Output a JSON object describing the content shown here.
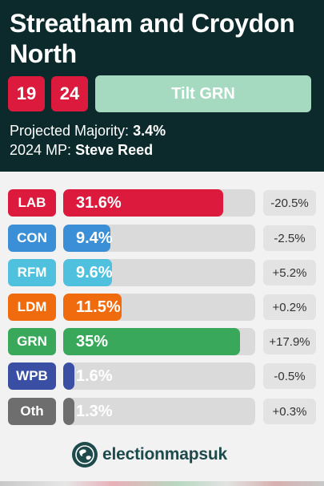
{
  "header": {
    "title": "Streatham and Croydon North",
    "badges": [
      "19",
      "24"
    ],
    "tilt_label": "Tilt GRN",
    "majority_label": "Projected Majority:",
    "majority_value": "3.4%",
    "mp_label": "2024 MP:",
    "mp_value": "Steve Reed"
  },
  "parties": [
    {
      "code": "LAB",
      "pct": "31.6%",
      "value": 31.6,
      "change": "-20.5%",
      "color": "#dc1a3d"
    },
    {
      "code": "CON",
      "pct": "9.4%",
      "value": 9.4,
      "change": "-2.5%",
      "color": "#3b8fd6"
    },
    {
      "code": "RFM",
      "pct": "9.6%",
      "value": 9.6,
      "change": "+5.2%",
      "color": "#4fc0dd"
    },
    {
      "code": "LDM",
      "pct": "11.5%",
      "value": 11.5,
      "change": "+0.2%",
      "color": "#f06a0e"
    },
    {
      "code": "GRN",
      "pct": "35%",
      "value": 35,
      "change": "+17.9%",
      "color": "#3aa85a"
    },
    {
      "code": "WPB",
      "pct": "1.6%",
      "value": 1.6,
      "change": "-0.5%",
      "color": "#3a4fa3"
    },
    {
      "code": "Oth",
      "pct": "1.3%",
      "value": 1.3,
      "change": "+0.3%",
      "color": "#6e6e6e"
    }
  ],
  "scale_max": 38,
  "logo": {
    "text": "electionmapsuk"
  }
}
